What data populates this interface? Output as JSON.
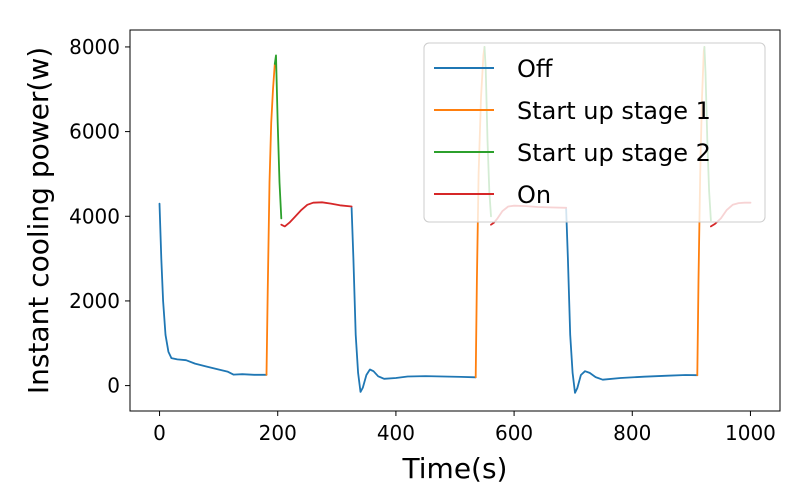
{
  "chart_data": {
    "type": "line",
    "title": "",
    "xlabel": "Time(s)",
    "ylabel": "Instant cooling power(w)",
    "xlim": [
      -50,
      1050
    ],
    "ylim": [
      -600,
      8400
    ],
    "xticks": [
      0,
      200,
      400,
      600,
      800,
      1000
    ],
    "yticks": [
      0,
      2000,
      4000,
      6000,
      8000
    ],
    "grid": false,
    "legend_placement": "top-right",
    "colors": {
      "off": "#1f77b4",
      "stage1": "#ff7f0e",
      "stage2": "#2ca02c",
      "on": "#d62728"
    },
    "series": [
      {
        "name": "Off",
        "segments": [
          [
            [
              0,
              4300
            ],
            [
              3,
              3000
            ],
            [
              6,
              2000
            ],
            [
              10,
              1200
            ],
            [
              15,
              800
            ],
            [
              20,
              650
            ],
            [
              30,
              620
            ],
            [
              45,
              600
            ],
            [
              60,
              520
            ],
            [
              80,
              450
            ],
            [
              100,
              380
            ],
            [
              115,
              330
            ],
            [
              125,
              260
            ],
            [
              140,
              270
            ],
            [
              160,
              255
            ],
            [
              181,
              255
            ]
          ],
          [
            [
              325,
              4200
            ],
            [
              328,
              3000
            ],
            [
              332,
              1200
            ],
            [
              336,
              300
            ],
            [
              340,
              -150
            ],
            [
              344,
              -50
            ],
            [
              350,
              250
            ],
            [
              356,
              380
            ],
            [
              362,
              340
            ],
            [
              370,
              220
            ],
            [
              380,
              160
            ],
            [
              400,
              180
            ],
            [
              420,
              215
            ],
            [
              450,
              225
            ],
            [
              480,
              215
            ],
            [
              510,
              205
            ],
            [
              535,
              195
            ]
          ],
          [
            [
              688,
              4200
            ],
            [
              691,
              3000
            ],
            [
              695,
              1200
            ],
            [
              699,
              300
            ],
            [
              703,
              -170
            ],
            [
              707,
              -60
            ],
            [
              713,
              250
            ],
            [
              720,
              340
            ],
            [
              728,
              300
            ],
            [
              738,
              200
            ],
            [
              750,
              140
            ],
            [
              780,
              180
            ],
            [
              820,
              210
            ],
            [
              860,
              235
            ],
            [
              890,
              250
            ],
            [
              910,
              245
            ]
          ]
        ]
      },
      {
        "name": "Start up stage 1",
        "segments": [
          [
            [
              181,
              255
            ],
            [
              183,
              2200
            ],
            [
              186,
              4800
            ],
            [
              189,
              6200
            ],
            [
              192,
              7000
            ],
            [
              195,
              7600
            ]
          ],
          [
            [
              535,
              195
            ],
            [
              537,
              2500
            ],
            [
              540,
              5000
            ],
            [
              544,
              6800
            ],
            [
              548,
              7800
            ],
            [
              550,
              8000
            ]
          ],
          [
            [
              910,
              245
            ],
            [
              912,
              2500
            ],
            [
              915,
              5000
            ],
            [
              918,
              6800
            ],
            [
              921,
              7900
            ],
            [
              922,
              8000
            ]
          ]
        ]
      },
      {
        "name": "Start up stage 2",
        "segments": [
          [
            [
              195,
              7600
            ],
            [
              197,
              7800
            ],
            [
              200,
              6200
            ],
            [
              203,
              4800
            ],
            [
              206,
              3950
            ]
          ],
          [
            [
              550,
              8000
            ],
            [
              552,
              7500
            ],
            [
              555,
              5800
            ],
            [
              558,
              4600
            ],
            [
              561,
              4000
            ]
          ],
          [
            [
              922,
              8000
            ],
            [
              924,
              7400
            ],
            [
              927,
              5800
            ],
            [
              930,
              4600
            ],
            [
              933,
              3900
            ]
          ]
        ]
      },
      {
        "name": "On",
        "segments": [
          [
            [
              206,
              3800
            ],
            [
              212,
              3760
            ],
            [
              220,
              3850
            ],
            [
              230,
              4000
            ],
            [
              240,
              4150
            ],
            [
              250,
              4270
            ],
            [
              260,
              4320
            ],
            [
              275,
              4330
            ],
            [
              290,
              4300
            ],
            [
              305,
              4260
            ],
            [
              325,
              4230
            ]
          ],
          [
            [
              561,
              3800
            ],
            [
              566,
              3850
            ],
            [
              572,
              3950
            ],
            [
              580,
              4120
            ],
            [
              590,
              4230
            ],
            [
              600,
              4250
            ],
            [
              620,
              4240
            ],
            [
              640,
              4220
            ],
            [
              660,
              4210
            ],
            [
              688,
              4200
            ]
          ],
          [
            [
              933,
              3760
            ],
            [
              940,
              3820
            ],
            [
              950,
              3950
            ],
            [
              960,
              4150
            ],
            [
              970,
              4270
            ],
            [
              980,
              4310
            ],
            [
              990,
              4320
            ],
            [
              1000,
              4320
            ]
          ]
        ]
      }
    ]
  }
}
